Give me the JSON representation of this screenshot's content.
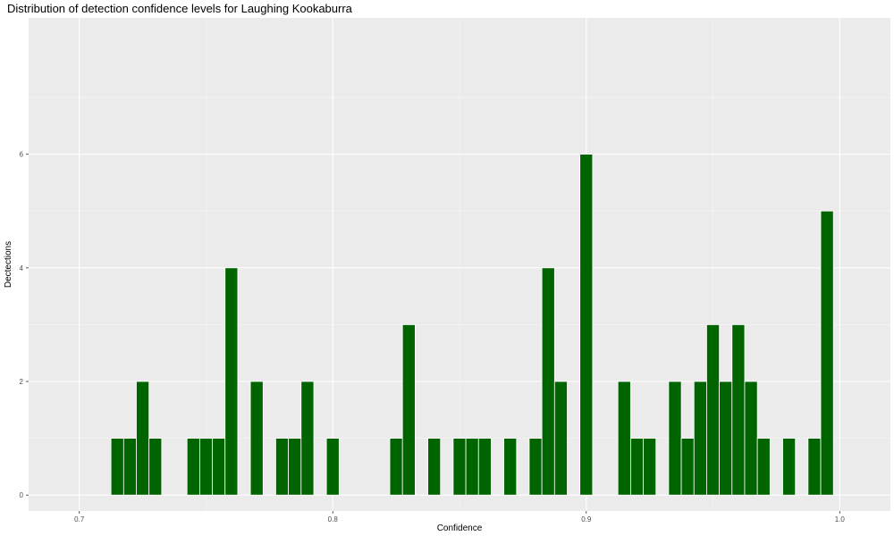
{
  "chart_data": {
    "type": "bar",
    "title": "Distribution of detection confidence levels for Laughing Kookaburra",
    "xlabel": "Confidence",
    "ylabel": "Dectections",
    "xlim": [
      0.68,
      1.02
    ],
    "ylim": [
      -0.28,
      8.4
    ],
    "x_ticks": [
      0.7,
      0.8,
      0.9,
      1.0
    ],
    "x_tick_labels": [
      "0.7",
      "0.8",
      "0.9",
      "1.0"
    ],
    "y_ticks": [
      0,
      2,
      4,
      6
    ],
    "y_tick_labels": [
      "0",
      "2",
      "4",
      "6"
    ],
    "bin_width": 0.005,
    "grid": true,
    "bar_color": "#006400",
    "bar_outline": "#ffffff",
    "panel_background": "#ebebeb",
    "bins": [
      {
        "x": 0.715,
        "count": 1
      },
      {
        "x": 0.72,
        "count": 1
      },
      {
        "x": 0.725,
        "count": 2
      },
      {
        "x": 0.73,
        "count": 1
      },
      {
        "x": 0.745,
        "count": 1
      },
      {
        "x": 0.75,
        "count": 1
      },
      {
        "x": 0.755,
        "count": 1
      },
      {
        "x": 0.76,
        "count": 4
      },
      {
        "x": 0.77,
        "count": 2
      },
      {
        "x": 0.78,
        "count": 1
      },
      {
        "x": 0.785,
        "count": 1
      },
      {
        "x": 0.79,
        "count": 2
      },
      {
        "x": 0.8,
        "count": 1
      },
      {
        "x": 0.825,
        "count": 1
      },
      {
        "x": 0.83,
        "count": 3
      },
      {
        "x": 0.84,
        "count": 1
      },
      {
        "x": 0.85,
        "count": 1
      },
      {
        "x": 0.855,
        "count": 1
      },
      {
        "x": 0.86,
        "count": 1
      },
      {
        "x": 0.87,
        "count": 1
      },
      {
        "x": 0.88,
        "count": 1
      },
      {
        "x": 0.885,
        "count": 4
      },
      {
        "x": 0.89,
        "count": 2
      },
      {
        "x": 0.9,
        "count": 6
      },
      {
        "x": 0.915,
        "count": 2
      },
      {
        "x": 0.92,
        "count": 1
      },
      {
        "x": 0.925,
        "count": 1
      },
      {
        "x": 0.935,
        "count": 2
      },
      {
        "x": 0.94,
        "count": 1
      },
      {
        "x": 0.945,
        "count": 2
      },
      {
        "x": 0.95,
        "count": 3
      },
      {
        "x": 0.955,
        "count": 2
      },
      {
        "x": 0.96,
        "count": 3
      },
      {
        "x": 0.965,
        "count": 2
      },
      {
        "x": 0.97,
        "count": 1
      },
      {
        "x": 0.98,
        "count": 1
      },
      {
        "x": 0.99,
        "count": 1
      },
      {
        "x": 0.995,
        "count": 5
      }
    ]
  }
}
